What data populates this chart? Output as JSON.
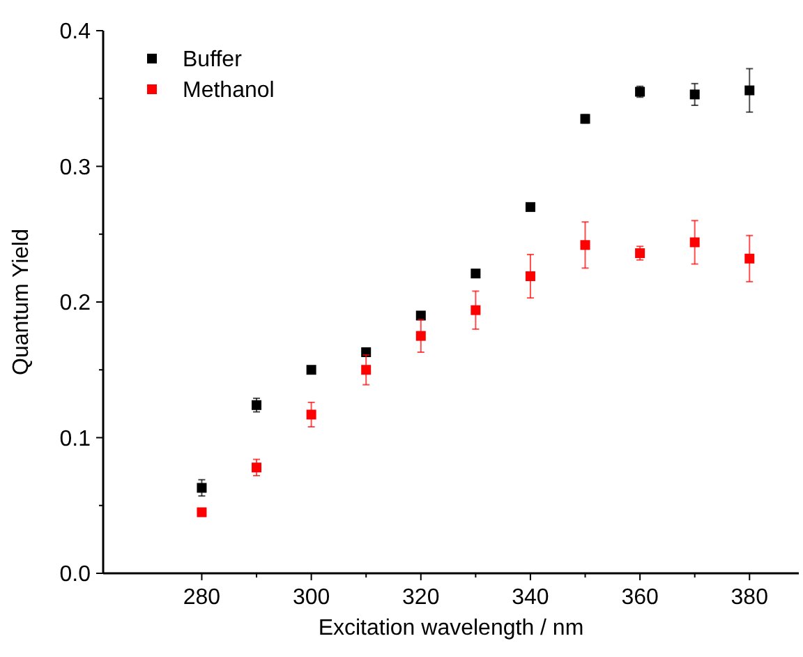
{
  "chart_data": {
    "type": "scatter",
    "xlabel": "Excitation wavelength / nm",
    "ylabel": "Quantum Yield",
    "x": [
      280,
      290,
      300,
      310,
      320,
      330,
      340,
      350,
      360,
      370,
      380
    ],
    "series": [
      {
        "name": "Buffer",
        "color": "#000000",
        "values": [
          0.063,
          0.124,
          0.15,
          0.163,
          0.19,
          0.221,
          0.27,
          0.335,
          0.355,
          0.353,
          0.356
        ],
        "errors": [
          0.006,
          0.005,
          0.002,
          0.003,
          0.002,
          0.002,
          0.002,
          0.003,
          0.004,
          0.008,
          0.016
        ]
      },
      {
        "name": "Methanol",
        "color": "#ff0000",
        "values": [
          0.045,
          0.078,
          0.117,
          0.15,
          0.175,
          0.194,
          0.219,
          0.242,
          0.236,
          0.244,
          0.232
        ],
        "errors": [
          null,
          0.006,
          0.009,
          0.011,
          0.012,
          0.014,
          0.016,
          0.017,
          0.005,
          0.016,
          0.017
        ]
      }
    ],
    "xlim": [
      262,
      389
    ],
    "ylim": [
      0,
      0.4
    ],
    "xticks": [
      280,
      {
        "value": 290,
        "label": null
      },
      300,
      {
        "value": 310,
        "label": null
      },
      320,
      {
        "value": 330,
        "label": null
      },
      340,
      {
        "value": 350,
        "label": null
      },
      360,
      {
        "value": 370,
        "label": null
      },
      380
    ],
    "yticks": [
      {
        "value": 0,
        "label": "0.0"
      },
      {
        "value": 0.05,
        "label": null
      },
      {
        "value": 0.1,
        "label": "0.1"
      },
      {
        "value": 0.15,
        "label": null
      },
      {
        "value": 0.2,
        "label": "0.2"
      },
      {
        "value": 0.25,
        "label": null
      },
      {
        "value": 0.3,
        "label": "0.3"
      },
      {
        "value": 0.35,
        "label": null
      },
      {
        "value": 0.4,
        "label": "0.4"
      }
    ],
    "marker": "square",
    "legend": "top left",
    "grid": false
  }
}
